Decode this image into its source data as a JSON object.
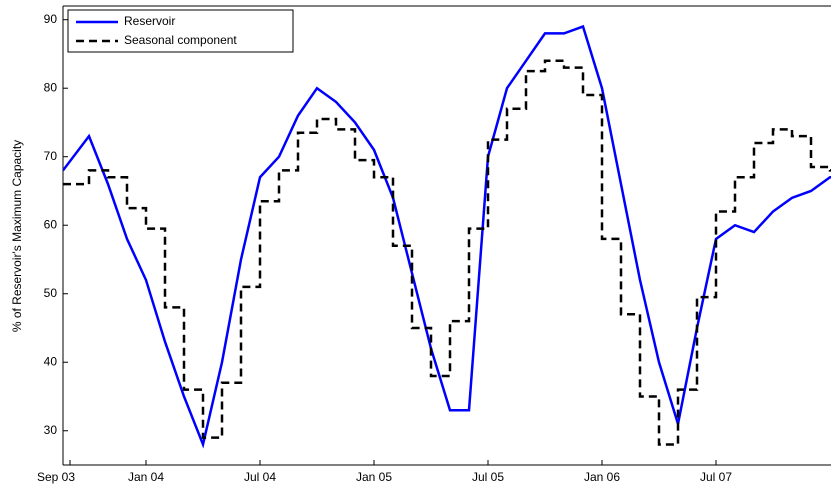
{
  "chart_data": {
    "type": "line",
    "y_label": "% of Reservoir's Maximum Capacity",
    "categories": [
      "Sep 03",
      null,
      null,
      null,
      "Jan 04",
      null,
      null,
      null,
      null,
      null,
      "Jul 04",
      null,
      null,
      null,
      null,
      null,
      "Jan 05",
      null,
      null,
      null,
      null,
      null,
      "Jul 05",
      null,
      null,
      null,
      null,
      null,
      "Jan 06",
      null,
      null,
      null,
      null,
      null,
      "Jul 07",
      null,
      null,
      null,
      null,
      null,
      null
    ],
    "series": [
      {
        "name": "Reservoir",
        "color": "#0000ff",
        "dash": false,
        "values": [
          68,
          73,
          66,
          58,
          52,
          43,
          35,
          28,
          40,
          55,
          67,
          70,
          76,
          80,
          78,
          75,
          71,
          64,
          53,
          42,
          33,
          33,
          70,
          80,
          84,
          88,
          88,
          89,
          80,
          66,
          52,
          40,
          31,
          45,
          58,
          60,
          59,
          62,
          64,
          65,
          67
        ]
      },
      {
        "name": "Seasonal component",
        "color": "#000000",
        "dash": true,
        "step": true,
        "values": [
          66,
          68,
          67,
          62.5,
          59.5,
          48,
          36,
          29,
          37,
          51,
          63.5,
          68,
          73.5,
          75.5,
          74,
          69.5,
          67,
          57,
          45,
          38,
          46,
          59.5,
          72.5,
          77,
          82.5,
          84,
          83,
          79,
          58,
          47,
          35,
          28,
          36,
          49.5,
          62,
          67,
          72,
          74,
          73,
          68.5,
          68
        ]
      }
    ],
    "ylim": [
      25,
      92
    ],
    "yticks": [
      30,
      40,
      50,
      60,
      70,
      80,
      90
    ],
    "legend": "upper-left"
  }
}
